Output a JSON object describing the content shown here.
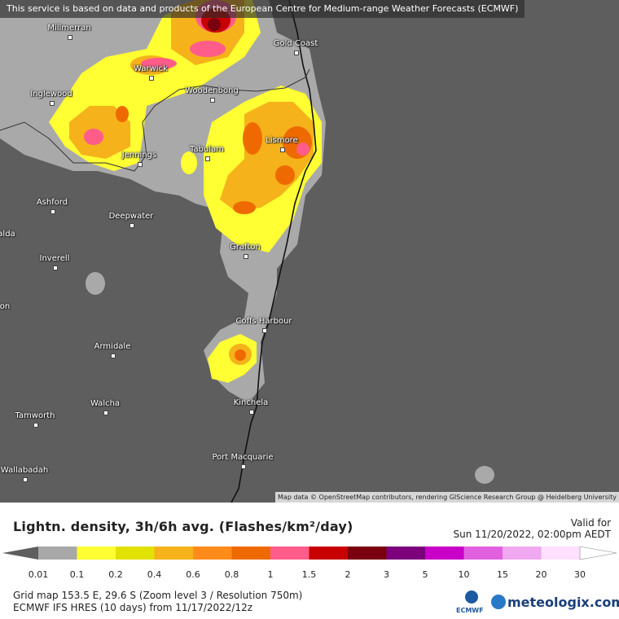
{
  "notice": "This service is based on data and products of the European Centre for Medium-range Weather Forecasts (ECMWF)",
  "attribution": "Map data © OpenStreetMap contributors, rendering GIScience Research Group @ Heidelberg University",
  "places": [
    {
      "name": "Millmerran"
    },
    {
      "name": "Gold Coast"
    },
    {
      "name": "Warwick"
    },
    {
      "name": "Inglewood"
    },
    {
      "name": "Woodenbong"
    },
    {
      "name": "Lismore"
    },
    {
      "name": "Tabulam"
    },
    {
      "name": "Jennings"
    },
    {
      "name": "Ashford"
    },
    {
      "name": "Deepwater"
    },
    {
      "name": "alda"
    },
    {
      "name": "Inverell"
    },
    {
      "name": "Grafton"
    },
    {
      "name": "on"
    },
    {
      "name": "Coffs Harbour"
    },
    {
      "name": "Armidale"
    },
    {
      "name": "Walcha"
    },
    {
      "name": "Kinchela"
    },
    {
      "name": "Tamworth"
    },
    {
      "name": "Port Macquarie"
    },
    {
      "name": "Wallabadah"
    }
  ],
  "legend": {
    "title": "Lightn. density, 3h/6h avg. (Flashes/km²/day)",
    "valid_label": "Valid for",
    "valid_time": "Sun 11/20/2022, 02:00pm AEDT",
    "ticks": [
      "0.01",
      "0.1",
      "0.2",
      "0.4",
      "0.6",
      "0.8",
      "1",
      "1.5",
      "2",
      "3",
      "5",
      "10",
      "15",
      "20",
      "30"
    ],
    "colors": [
      "#a8a8a8",
      "#ffff33",
      "#e2e200",
      "#f5b21a",
      "#ff8c1a",
      "#ee6a00",
      "#ff5c8a",
      "#c80000",
      "#7a0010",
      "#7c007c",
      "#c800c8",
      "#e060e0",
      "#f0a8f0",
      "#ffe0ff"
    ],
    "grid_info": "Grid map 153.5 E, 29.6 S (Zoom level 3 / Resolution 750m)",
    "model_info": "ECMWF IFS HRES (10 days) from 11/17/2022/12z",
    "ecmwf_label": "ECMWF",
    "brand": "meteologix.com"
  }
}
